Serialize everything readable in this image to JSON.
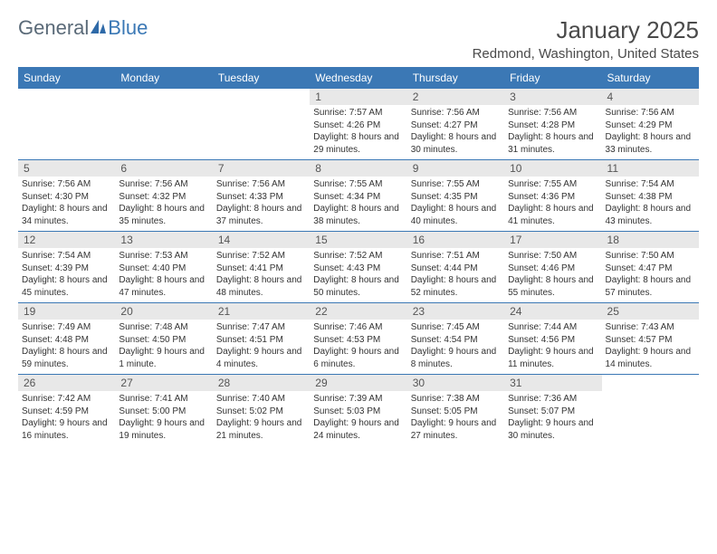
{
  "brand": {
    "text1": "General",
    "text2": "Blue"
  },
  "title": "January 2025",
  "location": "Redmond, Washington, United States",
  "colors": {
    "header_bg": "#3b78b5",
    "daynum_bg": "#e8e8e8",
    "week_border": "#3b78b5",
    "text_muted": "#5a6a78",
    "text_accent": "#3b78b5"
  },
  "dayNames": [
    "Sunday",
    "Monday",
    "Tuesday",
    "Wednesday",
    "Thursday",
    "Friday",
    "Saturday"
  ],
  "weeks": [
    [
      {
        "empty": true
      },
      {
        "empty": true
      },
      {
        "empty": true
      },
      {
        "day": "1",
        "sunrise": "7:57 AM",
        "sunset": "4:26 PM",
        "daylight": "8 hours and 29 minutes."
      },
      {
        "day": "2",
        "sunrise": "7:56 AM",
        "sunset": "4:27 PM",
        "daylight": "8 hours and 30 minutes."
      },
      {
        "day": "3",
        "sunrise": "7:56 AM",
        "sunset": "4:28 PM",
        "daylight": "8 hours and 31 minutes."
      },
      {
        "day": "4",
        "sunrise": "7:56 AM",
        "sunset": "4:29 PM",
        "daylight": "8 hours and 33 minutes."
      }
    ],
    [
      {
        "day": "5",
        "sunrise": "7:56 AM",
        "sunset": "4:30 PM",
        "daylight": "8 hours and 34 minutes."
      },
      {
        "day": "6",
        "sunrise": "7:56 AM",
        "sunset": "4:32 PM",
        "daylight": "8 hours and 35 minutes."
      },
      {
        "day": "7",
        "sunrise": "7:56 AM",
        "sunset": "4:33 PM",
        "daylight": "8 hours and 37 minutes."
      },
      {
        "day": "8",
        "sunrise": "7:55 AM",
        "sunset": "4:34 PM",
        "daylight": "8 hours and 38 minutes."
      },
      {
        "day": "9",
        "sunrise": "7:55 AM",
        "sunset": "4:35 PM",
        "daylight": "8 hours and 40 minutes."
      },
      {
        "day": "10",
        "sunrise": "7:55 AM",
        "sunset": "4:36 PM",
        "daylight": "8 hours and 41 minutes."
      },
      {
        "day": "11",
        "sunrise": "7:54 AM",
        "sunset": "4:38 PM",
        "daylight": "8 hours and 43 minutes."
      }
    ],
    [
      {
        "day": "12",
        "sunrise": "7:54 AM",
        "sunset": "4:39 PM",
        "daylight": "8 hours and 45 minutes."
      },
      {
        "day": "13",
        "sunrise": "7:53 AM",
        "sunset": "4:40 PM",
        "daylight": "8 hours and 47 minutes."
      },
      {
        "day": "14",
        "sunrise": "7:52 AM",
        "sunset": "4:41 PM",
        "daylight": "8 hours and 48 minutes."
      },
      {
        "day": "15",
        "sunrise": "7:52 AM",
        "sunset": "4:43 PM",
        "daylight": "8 hours and 50 minutes."
      },
      {
        "day": "16",
        "sunrise": "7:51 AM",
        "sunset": "4:44 PM",
        "daylight": "8 hours and 52 minutes."
      },
      {
        "day": "17",
        "sunrise": "7:50 AM",
        "sunset": "4:46 PM",
        "daylight": "8 hours and 55 minutes."
      },
      {
        "day": "18",
        "sunrise": "7:50 AM",
        "sunset": "4:47 PM",
        "daylight": "8 hours and 57 minutes."
      }
    ],
    [
      {
        "day": "19",
        "sunrise": "7:49 AM",
        "sunset": "4:48 PM",
        "daylight": "8 hours and 59 minutes."
      },
      {
        "day": "20",
        "sunrise": "7:48 AM",
        "sunset": "4:50 PM",
        "daylight": "9 hours and 1 minute."
      },
      {
        "day": "21",
        "sunrise": "7:47 AM",
        "sunset": "4:51 PM",
        "daylight": "9 hours and 4 minutes."
      },
      {
        "day": "22",
        "sunrise": "7:46 AM",
        "sunset": "4:53 PM",
        "daylight": "9 hours and 6 minutes."
      },
      {
        "day": "23",
        "sunrise": "7:45 AM",
        "sunset": "4:54 PM",
        "daylight": "9 hours and 8 minutes."
      },
      {
        "day": "24",
        "sunrise": "7:44 AM",
        "sunset": "4:56 PM",
        "daylight": "9 hours and 11 minutes."
      },
      {
        "day": "25",
        "sunrise": "7:43 AM",
        "sunset": "4:57 PM",
        "daylight": "9 hours and 14 minutes."
      }
    ],
    [
      {
        "day": "26",
        "sunrise": "7:42 AM",
        "sunset": "4:59 PM",
        "daylight": "9 hours and 16 minutes."
      },
      {
        "day": "27",
        "sunrise": "7:41 AM",
        "sunset": "5:00 PM",
        "daylight": "9 hours and 19 minutes."
      },
      {
        "day": "28",
        "sunrise": "7:40 AM",
        "sunset": "5:02 PM",
        "daylight": "9 hours and 21 minutes."
      },
      {
        "day": "29",
        "sunrise": "7:39 AM",
        "sunset": "5:03 PM",
        "daylight": "9 hours and 24 minutes."
      },
      {
        "day": "30",
        "sunrise": "7:38 AM",
        "sunset": "5:05 PM",
        "daylight": "9 hours and 27 minutes."
      },
      {
        "day": "31",
        "sunrise": "7:36 AM",
        "sunset": "5:07 PM",
        "daylight": "9 hours and 30 minutes."
      },
      {
        "empty": true
      }
    ]
  ],
  "labels": {
    "sunrise": "Sunrise:",
    "sunset": "Sunset:",
    "daylight": "Daylight:"
  }
}
